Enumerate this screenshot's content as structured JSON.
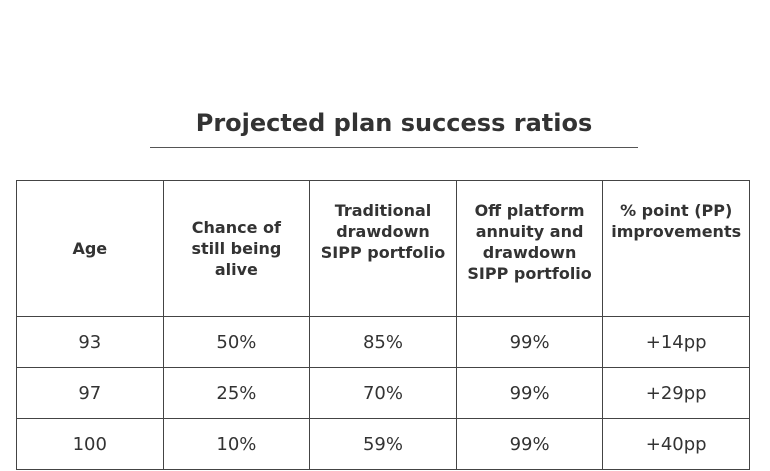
{
  "title": "Projected plan success ratios",
  "table": {
    "headers": [
      [
        "Age"
      ],
      [
        "Chance of",
        "still being alive"
      ],
      [
        "Traditional",
        "drawdown",
        "SIPP portfolio"
      ],
      [
        "Off platform",
        "annuity and",
        "drawdown",
        "SIPP portfolio"
      ],
      [
        "% point (PP)",
        "improvements"
      ]
    ],
    "rows": [
      [
        "93",
        "50%",
        "85%",
        "99%",
        "+14pp"
      ],
      [
        "97",
        "25%",
        "70%",
        "99%",
        "+29pp"
      ],
      [
        "100",
        "10%",
        "59%",
        "99%",
        "+40pp"
      ]
    ]
  }
}
